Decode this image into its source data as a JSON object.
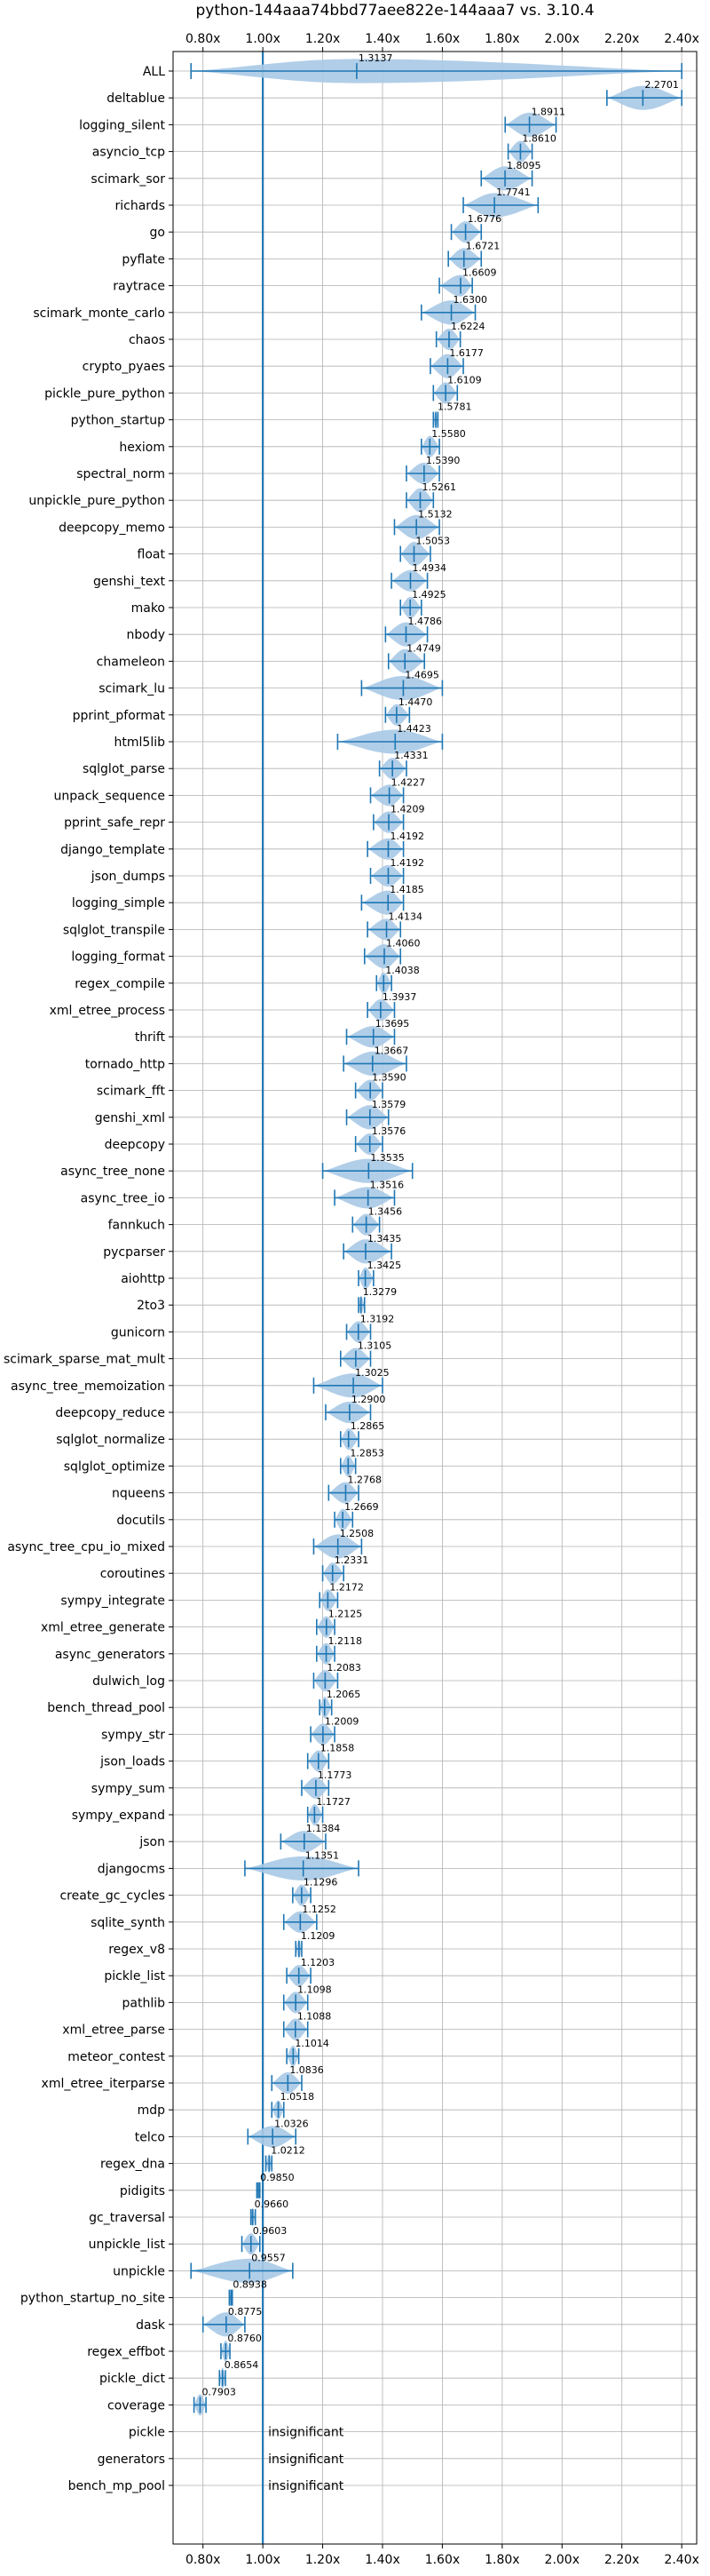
{
  "chart_data": {
    "type": "violin",
    "title": "python-144aaa74bbd77aee822e-144aaa7 vs. 3.10.4",
    "xlabel": "",
    "ylabel": "",
    "xlim": [
      0.7,
      2.45
    ],
    "xticks": [
      0.8,
      1.0,
      1.2,
      1.4,
      1.6,
      1.8,
      2.0,
      2.2,
      2.4
    ],
    "xtick_labels": [
      "0.80x",
      "1.00x",
      "1.20x",
      "1.40x",
      "1.60x",
      "1.80x",
      "2.00x",
      "2.20x",
      "2.40x"
    ],
    "reference_line": 1.0,
    "grid": true,
    "colors": {
      "violin": "#a9c9e6",
      "line": "#1f77b4"
    },
    "insignificant_label": "insignificant",
    "benchmarks": [
      {
        "name": "ALL",
        "value": 1.3137,
        "label": "1.3137",
        "min": 0.76,
        "max": 2.4,
        "width": 0.45
      },
      {
        "name": "deltablue",
        "value": 2.2701,
        "label": "2.2701",
        "min": 2.15,
        "max": 2.4,
        "width": 0.45
      },
      {
        "name": "logging_silent",
        "value": 1.8911,
        "label": "1.8911",
        "min": 1.81,
        "max": 1.98,
        "width": 0.45
      },
      {
        "name": "asyncio_tcp",
        "value": 1.861,
        "label": "1.8610",
        "min": 1.82,
        "max": 1.9,
        "width": 0.4
      },
      {
        "name": "scimark_sor",
        "value": 1.8095,
        "label": "1.8095",
        "min": 1.73,
        "max": 1.9,
        "width": 0.45
      },
      {
        "name": "richards",
        "value": 1.7741,
        "label": "1.7741",
        "min": 1.67,
        "max": 1.92,
        "width": 0.45
      },
      {
        "name": "go",
        "value": 1.6776,
        "label": "1.6776",
        "min": 1.63,
        "max": 1.73,
        "width": 0.4
      },
      {
        "name": "pyflate",
        "value": 1.6721,
        "label": "1.6721",
        "min": 1.62,
        "max": 1.73,
        "width": 0.4
      },
      {
        "name": "raytrace",
        "value": 1.6609,
        "label": "1.6609",
        "min": 1.59,
        "max": 1.7,
        "width": 0.4
      },
      {
        "name": "scimark_monte_carlo",
        "value": 1.63,
        "label": "1.6300",
        "min": 1.53,
        "max": 1.71,
        "width": 0.45
      },
      {
        "name": "chaos",
        "value": 1.6224,
        "label": "1.6224",
        "min": 1.58,
        "max": 1.66,
        "width": 0.4
      },
      {
        "name": "crypto_pyaes",
        "value": 1.6177,
        "label": "1.6177",
        "min": 1.56,
        "max": 1.67,
        "width": 0.45
      },
      {
        "name": "pickle_pure_python",
        "value": 1.6109,
        "label": "1.6109",
        "min": 1.57,
        "max": 1.65,
        "width": 0.4
      },
      {
        "name": "python_startup",
        "value": 1.5781,
        "label": "1.5781",
        "min": 1.57,
        "max": 1.585,
        "width": 0.3
      },
      {
        "name": "hexiom",
        "value": 1.558,
        "label": "1.5580",
        "min": 1.53,
        "max": 1.59,
        "width": 0.4
      },
      {
        "name": "spectral_norm",
        "value": 1.539,
        "label": "1.5390",
        "min": 1.48,
        "max": 1.59,
        "width": 0.4
      },
      {
        "name": "unpickle_pure_python",
        "value": 1.5261,
        "label": "1.5261",
        "min": 1.48,
        "max": 1.57,
        "width": 0.45
      },
      {
        "name": "deepcopy_memo",
        "value": 1.5132,
        "label": "1.5132",
        "min": 1.44,
        "max": 1.59,
        "width": 0.45
      },
      {
        "name": "float",
        "value": 1.5053,
        "label": "1.5053",
        "min": 1.46,
        "max": 1.56,
        "width": 0.45
      },
      {
        "name": "genshi_text",
        "value": 1.4934,
        "label": "1.4934",
        "min": 1.43,
        "max": 1.55,
        "width": 0.4
      },
      {
        "name": "mako",
        "value": 1.4925,
        "label": "1.4925",
        "min": 1.46,
        "max": 1.53,
        "width": 0.4
      },
      {
        "name": "nbody",
        "value": 1.4786,
        "label": "1.4786",
        "min": 1.41,
        "max": 1.55,
        "width": 0.45
      },
      {
        "name": "chameleon",
        "value": 1.4749,
        "label": "1.4749",
        "min": 1.42,
        "max": 1.54,
        "width": 0.45
      },
      {
        "name": "scimark_lu",
        "value": 1.4695,
        "label": "1.4695",
        "min": 1.33,
        "max": 1.6,
        "width": 0.45
      },
      {
        "name": "pprint_pformat",
        "value": 1.447,
        "label": "1.4470",
        "min": 1.41,
        "max": 1.49,
        "width": 0.4
      },
      {
        "name": "html5lib",
        "value": 1.4423,
        "label": "1.4423",
        "min": 1.25,
        "max": 1.6,
        "width": 0.45
      },
      {
        "name": "sqlglot_parse",
        "value": 1.4331,
        "label": "1.4331",
        "min": 1.39,
        "max": 1.48,
        "width": 0.4
      },
      {
        "name": "unpack_sequence",
        "value": 1.4227,
        "label": "1.4227",
        "min": 1.36,
        "max": 1.47,
        "width": 0.4
      },
      {
        "name": "pprint_safe_repr",
        "value": 1.4209,
        "label": "1.4209",
        "min": 1.37,
        "max": 1.47,
        "width": 0.4
      },
      {
        "name": "django_template",
        "value": 1.4192,
        "label": "1.4192",
        "min": 1.35,
        "max": 1.47,
        "width": 0.4
      },
      {
        "name": "json_dumps",
        "value": 1.4192,
        "label": "1.4192",
        "min": 1.36,
        "max": 1.47,
        "width": 0.4
      },
      {
        "name": "logging_simple",
        "value": 1.4185,
        "label": "1.4185",
        "min": 1.33,
        "max": 1.47,
        "width": 0.45
      },
      {
        "name": "sqlglot_transpile",
        "value": 1.4134,
        "label": "1.4134",
        "min": 1.35,
        "max": 1.46,
        "width": 0.4
      },
      {
        "name": "logging_format",
        "value": 1.406,
        "label": "1.4060",
        "min": 1.34,
        "max": 1.46,
        "width": 0.45
      },
      {
        "name": "regex_compile",
        "value": 1.4038,
        "label": "1.4038",
        "min": 1.38,
        "max": 1.43,
        "width": 0.4
      },
      {
        "name": "xml_etree_process",
        "value": 1.3937,
        "label": "1.3937",
        "min": 1.35,
        "max": 1.44,
        "width": 0.4
      },
      {
        "name": "thrift",
        "value": 1.3695,
        "label": "1.3695",
        "min": 1.28,
        "max": 1.44,
        "width": 0.4
      },
      {
        "name": "tornado_http",
        "value": 1.3667,
        "label": "1.3667",
        "min": 1.27,
        "max": 1.48,
        "width": 0.45
      },
      {
        "name": "scimark_fft",
        "value": 1.359,
        "label": "1.3590",
        "min": 1.31,
        "max": 1.4,
        "width": 0.4
      },
      {
        "name": "genshi_xml",
        "value": 1.3579,
        "label": "1.3579",
        "min": 1.28,
        "max": 1.42,
        "width": 0.45
      },
      {
        "name": "deepcopy",
        "value": 1.3576,
        "label": "1.3576",
        "min": 1.31,
        "max": 1.4,
        "width": 0.4
      },
      {
        "name": "async_tree_none",
        "value": 1.3535,
        "label": "1.3535",
        "min": 1.2,
        "max": 1.5,
        "width": 0.45
      },
      {
        "name": "async_tree_io",
        "value": 1.3516,
        "label": "1.3516",
        "min": 1.24,
        "max": 1.44,
        "width": 0.4
      },
      {
        "name": "fannkuch",
        "value": 1.3456,
        "label": "1.3456",
        "min": 1.3,
        "max": 1.39,
        "width": 0.4
      },
      {
        "name": "pycparser",
        "value": 1.3435,
        "label": "1.3435",
        "min": 1.27,
        "max": 1.43,
        "width": 0.45
      },
      {
        "name": "aiohttp",
        "value": 1.3425,
        "label": "1.3425",
        "min": 1.32,
        "max": 1.37,
        "width": 0.4
      },
      {
        "name": "2to3",
        "value": 1.3279,
        "label": "1.3279",
        "min": 1.32,
        "max": 1.34,
        "width": 0.35
      },
      {
        "name": "gunicorn",
        "value": 1.3192,
        "label": "1.3192",
        "min": 1.28,
        "max": 1.36,
        "width": 0.4
      },
      {
        "name": "scimark_sparse_mat_mult",
        "value": 1.3105,
        "label": "1.3105",
        "min": 1.26,
        "max": 1.36,
        "width": 0.4
      },
      {
        "name": "async_tree_memoization",
        "value": 1.3025,
        "label": "1.3025",
        "min": 1.17,
        "max": 1.4,
        "width": 0.45
      },
      {
        "name": "deepcopy_reduce",
        "value": 1.29,
        "label": "1.2900",
        "min": 1.21,
        "max": 1.36,
        "width": 0.4
      },
      {
        "name": "sqlglot_normalize",
        "value": 1.2865,
        "label": "1.2865",
        "min": 1.26,
        "max": 1.32,
        "width": 0.4
      },
      {
        "name": "sqlglot_optimize",
        "value": 1.2853,
        "label": "1.2853",
        "min": 1.26,
        "max": 1.31,
        "width": 0.4
      },
      {
        "name": "nqueens",
        "value": 1.2768,
        "label": "1.2768",
        "min": 1.22,
        "max": 1.32,
        "width": 0.4
      },
      {
        "name": "docutils",
        "value": 1.2669,
        "label": "1.2669",
        "min": 1.24,
        "max": 1.3,
        "width": 0.4
      },
      {
        "name": "async_tree_cpu_io_mixed",
        "value": 1.2508,
        "label": "1.2508",
        "min": 1.17,
        "max": 1.33,
        "width": 0.45
      },
      {
        "name": "coroutines",
        "value": 1.2331,
        "label": "1.2331",
        "min": 1.2,
        "max": 1.27,
        "width": 0.4
      },
      {
        "name": "sympy_integrate",
        "value": 1.2172,
        "label": "1.2172",
        "min": 1.19,
        "max": 1.25,
        "width": 0.4
      },
      {
        "name": "xml_etree_generate",
        "value": 1.2125,
        "label": "1.2125",
        "min": 1.18,
        "max": 1.24,
        "width": 0.4
      },
      {
        "name": "async_generators",
        "value": 1.2118,
        "label": "1.2118",
        "min": 1.18,
        "max": 1.24,
        "width": 0.4
      },
      {
        "name": "dulwich_log",
        "value": 1.2083,
        "label": "1.2083",
        "min": 1.17,
        "max": 1.25,
        "width": 0.4
      },
      {
        "name": "bench_thread_pool",
        "value": 1.2065,
        "label": "1.2065",
        "min": 1.19,
        "max": 1.23,
        "width": 0.4
      },
      {
        "name": "sympy_str",
        "value": 1.2009,
        "label": "1.2009",
        "min": 1.16,
        "max": 1.24,
        "width": 0.4
      },
      {
        "name": "json_loads",
        "value": 1.1858,
        "label": "1.1858",
        "min": 1.15,
        "max": 1.22,
        "width": 0.4
      },
      {
        "name": "sympy_sum",
        "value": 1.1773,
        "label": "1.1773",
        "min": 1.13,
        "max": 1.22,
        "width": 0.4
      },
      {
        "name": "sympy_expand",
        "value": 1.1727,
        "label": "1.1727",
        "min": 1.15,
        "max": 1.2,
        "width": 0.4
      },
      {
        "name": "json",
        "value": 1.1384,
        "label": "1.1384",
        "min": 1.06,
        "max": 1.21,
        "width": 0.4
      },
      {
        "name": "djangocms",
        "value": 1.1351,
        "label": "1.1351",
        "min": 0.94,
        "max": 1.32,
        "width": 0.45
      },
      {
        "name": "create_gc_cycles",
        "value": 1.1296,
        "label": "1.1296",
        "min": 1.1,
        "max": 1.16,
        "width": 0.4
      },
      {
        "name": "sqlite_synth",
        "value": 1.1252,
        "label": "1.1252",
        "min": 1.07,
        "max": 1.18,
        "width": 0.4
      },
      {
        "name": "regex_v8",
        "value": 1.1209,
        "label": "1.1209",
        "min": 1.11,
        "max": 1.13,
        "width": 0.35
      },
      {
        "name": "pickle_list",
        "value": 1.1203,
        "label": "1.1203",
        "min": 1.08,
        "max": 1.16,
        "width": 0.4
      },
      {
        "name": "pathlib",
        "value": 1.1098,
        "label": "1.1098",
        "min": 1.07,
        "max": 1.15,
        "width": 0.4
      },
      {
        "name": "xml_etree_parse",
        "value": 1.1088,
        "label": "1.1088",
        "min": 1.07,
        "max": 1.15,
        "width": 0.4
      },
      {
        "name": "meteor_contest",
        "value": 1.1014,
        "label": "1.1014",
        "min": 1.08,
        "max": 1.12,
        "width": 0.4
      },
      {
        "name": "xml_etree_iterparse",
        "value": 1.0836,
        "label": "1.0836",
        "min": 1.03,
        "max": 1.13,
        "width": 0.4
      },
      {
        "name": "mdp",
        "value": 1.0518,
        "label": "1.0518",
        "min": 1.03,
        "max": 1.07,
        "width": 0.35
      },
      {
        "name": "telco",
        "value": 1.0326,
        "label": "1.0326",
        "min": 0.95,
        "max": 1.11,
        "width": 0.4
      },
      {
        "name": "regex_dna",
        "value": 1.0212,
        "label": "1.0212",
        "min": 1.01,
        "max": 1.03,
        "width": 0.35
      },
      {
        "name": "pidigits",
        "value": 0.985,
        "label": "0.9850",
        "min": 0.98,
        "max": 0.99,
        "width": 0.3
      },
      {
        "name": "gc_traversal",
        "value": 0.966,
        "label": "0.9660",
        "min": 0.96,
        "max": 0.975,
        "width": 0.35
      },
      {
        "name": "unpickle_list",
        "value": 0.9603,
        "label": "0.9603",
        "min": 0.93,
        "max": 0.99,
        "width": 0.4
      },
      {
        "name": "unpickle",
        "value": 0.9557,
        "label": "0.9557",
        "min": 0.76,
        "max": 1.1,
        "width": 0.45
      },
      {
        "name": "python_startup_no_site",
        "value": 0.8938,
        "label": "0.8938",
        "min": 0.888,
        "max": 0.898,
        "width": 0.3
      },
      {
        "name": "dask",
        "value": 0.8775,
        "label": "0.8775",
        "min": 0.8,
        "max": 0.94,
        "width": 0.45
      },
      {
        "name": "regex_effbot",
        "value": 0.876,
        "label": "0.8760",
        "min": 0.86,
        "max": 0.89,
        "width": 0.4
      },
      {
        "name": "pickle_dict",
        "value": 0.8654,
        "label": "0.8654",
        "min": 0.855,
        "max": 0.875,
        "width": 0.4
      },
      {
        "name": "coverage",
        "value": 0.7903,
        "label": "0.7903",
        "min": 0.77,
        "max": 0.81,
        "width": 0.4
      },
      {
        "name": "pickle",
        "insignificant": true
      },
      {
        "name": "generators",
        "insignificant": true
      },
      {
        "name": "bench_mp_pool",
        "insignificant": true
      }
    ]
  }
}
